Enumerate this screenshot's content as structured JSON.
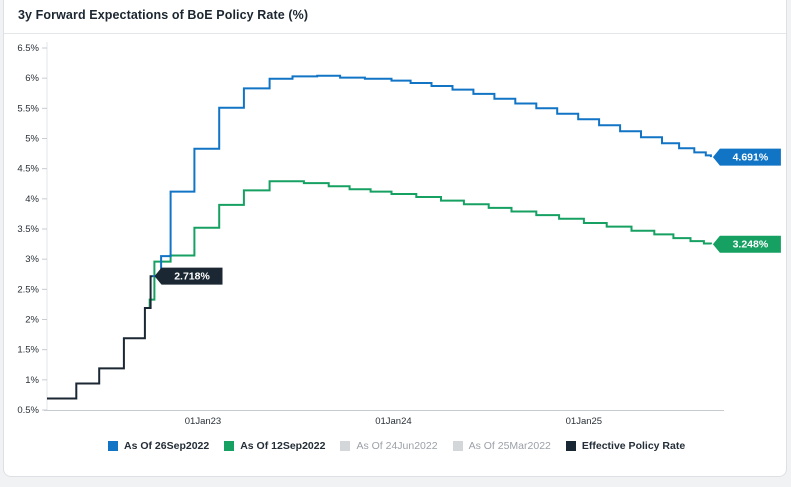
{
  "card": {
    "title": "3y Forward Expectations of BoE Policy Rate (%)"
  },
  "chart_data": {
    "type": "line",
    "title": "3y Forward Expectations of BoE Policy Rate (%)",
    "xlabel": "",
    "ylabel": "",
    "grid": false,
    "legend_position": "bottom",
    "ylim": [
      0.5,
      6.5
    ],
    "xlim_decimal_years": [
      2022.181,
      2025.72
    ],
    "y_ticks": [
      {
        "v": 6.5,
        "label": "6.5%"
      },
      {
        "v": 6.0,
        "label": "6%"
      },
      {
        "v": 5.5,
        "label": "5.5%"
      },
      {
        "v": 5.0,
        "label": "5%"
      },
      {
        "v": 4.5,
        "label": "4.5%"
      },
      {
        "v": 4.0,
        "label": "4%"
      },
      {
        "v": 3.5,
        "label": "3.5%"
      },
      {
        "v": 3.0,
        "label": "3%"
      },
      {
        "v": 2.5,
        "label": "2.5%"
      },
      {
        "v": 2.0,
        "label": "2%"
      },
      {
        "v": 1.5,
        "label": "1.5%"
      },
      {
        "v": 1.0,
        "label": "1%"
      },
      {
        "v": 0.5,
        "label": "0.5%"
      }
    ],
    "x_ticks": [
      {
        "t": 2023.0,
        "label": "01Jan23"
      },
      {
        "t": 2024.0,
        "label": "01Jan24"
      },
      {
        "t": 2025.0,
        "label": "01Jan25"
      }
    ],
    "series": [
      {
        "name": "As Of 12Sep2022",
        "color": "#16a062",
        "end_label": "3.248%",
        "end_t": 2025.667,
        "points": [
          [
            2022.7,
            2.19
          ],
          [
            2022.72,
            2.33
          ],
          [
            2022.745,
            2.96
          ],
          [
            2022.83,
            3.06
          ],
          [
            2022.955,
            3.52
          ],
          [
            2023.085,
            3.9
          ],
          [
            2023.215,
            4.14
          ],
          [
            2023.35,
            4.29
          ],
          [
            2023.53,
            4.26
          ],
          [
            2023.66,
            4.21
          ],
          [
            2023.77,
            4.16
          ],
          [
            2023.88,
            4.12
          ],
          [
            2023.99,
            4.08
          ],
          [
            2024.12,
            4.03
          ],
          [
            2024.25,
            3.97
          ],
          [
            2024.37,
            3.91
          ],
          [
            2024.5,
            3.85
          ],
          [
            2024.62,
            3.79
          ],
          [
            2024.75,
            3.73
          ],
          [
            2024.87,
            3.67
          ],
          [
            2025.0,
            3.6
          ],
          [
            2025.12,
            3.54
          ],
          [
            2025.25,
            3.47
          ],
          [
            2025.37,
            3.41
          ],
          [
            2025.47,
            3.35
          ],
          [
            2025.56,
            3.3
          ],
          [
            2025.63,
            3.26
          ],
          [
            2025.667,
            3.248
          ]
        ]
      },
      {
        "name": "As Of 26Sep2022",
        "color": "#1274c5",
        "end_label": "4.691%",
        "end_t": 2025.667,
        "points": [
          [
            2022.735,
            2.72
          ],
          [
            2022.78,
            3.05
          ],
          [
            2022.83,
            4.12
          ],
          [
            2022.955,
            4.83
          ],
          [
            2023.085,
            5.51
          ],
          [
            2023.215,
            5.83
          ],
          [
            2023.35,
            5.99
          ],
          [
            2023.47,
            6.03
          ],
          [
            2023.6,
            6.04
          ],
          [
            2023.72,
            6.01
          ],
          [
            2023.85,
            5.99
          ],
          [
            2023.99,
            5.96
          ],
          [
            2024.09,
            5.92
          ],
          [
            2024.2,
            5.87
          ],
          [
            2024.31,
            5.81
          ],
          [
            2024.42,
            5.74
          ],
          [
            2024.53,
            5.66
          ],
          [
            2024.64,
            5.58
          ],
          [
            2024.75,
            5.5
          ],
          [
            2024.86,
            5.41
          ],
          [
            2024.97,
            5.32
          ],
          [
            2025.08,
            5.22
          ],
          [
            2025.19,
            5.12
          ],
          [
            2025.3,
            5.02
          ],
          [
            2025.41,
            4.92
          ],
          [
            2025.5,
            4.84
          ],
          [
            2025.58,
            4.77
          ],
          [
            2025.64,
            4.72
          ],
          [
            2025.667,
            4.691
          ]
        ]
      },
      {
        "name": "Effective Policy Rate",
        "color": "#1b2733",
        "end_label": "2.718%",
        "end_t": 2022.735,
        "points": [
          [
            2022.181,
            0.69
          ],
          [
            2022.335,
            0.94
          ],
          [
            2022.455,
            1.19
          ],
          [
            2022.585,
            1.69
          ],
          [
            2022.695,
            2.19
          ],
          [
            2022.725,
            2.718
          ]
        ]
      }
    ],
    "legend": [
      {
        "label": "As Of 26Sep2022",
        "color": "#1274c5",
        "enabled": true
      },
      {
        "label": "As Of 12Sep2022",
        "color": "#16a062",
        "enabled": true
      },
      {
        "label": "As Of 24Jun2022",
        "color": "#d4d7da",
        "enabled": false
      },
      {
        "label": "As Of 25Mar2022",
        "color": "#d4d7da",
        "enabled": false
      },
      {
        "label": "Effective Policy Rate",
        "color": "#192734",
        "enabled": true
      }
    ],
    "colors": {
      "axis_line": "#c7ccd1",
      "tick_text": "#2a3138",
      "plot_edge": "#e3e6e9",
      "badge_text": "#ffffff"
    }
  }
}
